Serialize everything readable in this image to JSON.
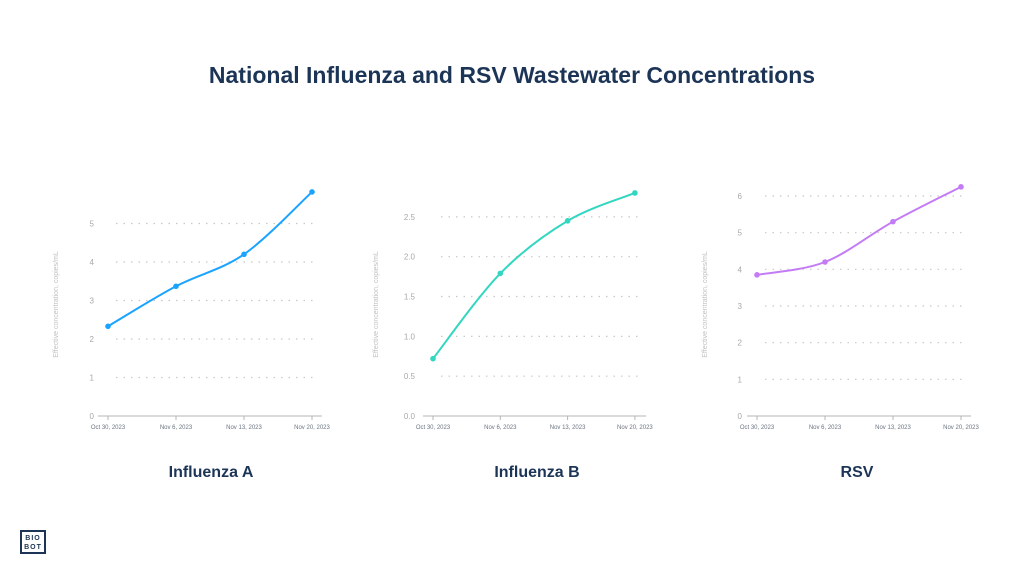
{
  "title": "National Influenza and RSV Wastewater Concentrations",
  "logo_text": "BIO BOT",
  "chart_data": [
    {
      "type": "line",
      "title": "Influenza A",
      "color": "#1aa3ff",
      "ylabel": "Effective concentration, copies/mL",
      "categories": [
        "Oct 30, 2023",
        "Nov 6, 2023",
        "Nov 13, 2023",
        "Nov 20, 2023"
      ],
      "values": [
        2.33,
        3.37,
        4.2,
        5.82
      ],
      "yticks": [
        0,
        1,
        2,
        3,
        4,
        5
      ],
      "ytick_labels": [
        "0",
        "1",
        "2",
        "3",
        "4",
        "5"
      ],
      "ylim": [
        0,
        6
      ],
      "grid": true
    },
    {
      "type": "line",
      "title": "Influenza B",
      "color": "#33d6c0",
      "ylabel": "Effective concentration, copies/mL",
      "categories": [
        "Oct 30, 2023",
        "Nov 6, 2023",
        "Nov 13, 2023",
        "Nov 20, 2023"
      ],
      "values": [
        0.72,
        1.79,
        2.45,
        2.8
      ],
      "yticks": [
        0,
        0.5,
        1,
        1.5,
        2,
        2.5
      ],
      "ytick_labels": [
        "0.0",
        "0.5",
        "1.0",
        "1.5",
        "2.0",
        "2.5"
      ],
      "ylim": [
        0,
        2.9
      ],
      "grid": true
    },
    {
      "type": "line",
      "title": "RSV",
      "color": "#c47cf5",
      "ylabel": "Effective concentration, copies/mL",
      "categories": [
        "Oct 30, 2023",
        "Nov 6, 2023",
        "Nov 13, 2023",
        "Nov 20, 2023"
      ],
      "values": [
        3.85,
        4.2,
        5.3,
        6.25
      ],
      "yticks": [
        0,
        1,
        2,
        3,
        4,
        5,
        6
      ],
      "ytick_labels": [
        "0",
        "1",
        "2",
        "3",
        "4",
        "5",
        "6"
      ],
      "ylim": [
        0,
        6.3
      ],
      "grid": true
    }
  ]
}
